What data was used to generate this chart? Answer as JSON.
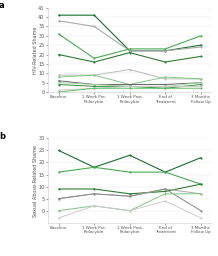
{
  "panel_a": {
    "panel_label": "a",
    "ylabel": "HIV-Related Shame",
    "xlabels": [
      "Baseline",
      "1 Week Pre-\nPsilocybin",
      "1 Week Post-\nPsilocybin",
      "End of\nTreatment",
      "3 Months\nFollow Up"
    ],
    "ylim": [
      0,
      45
    ],
    "yticks": [
      0,
      5,
      10,
      15,
      20,
      25,
      30,
      35,
      40,
      45
    ],
    "lines": [
      {
        "y": [
          41,
          41,
          22,
          22,
          25
        ],
        "color": "#1a6e2e",
        "lw": 0.8
      },
      {
        "y": [
          38,
          35,
          22,
          22,
          24
        ],
        "color": "#aaaaaa",
        "lw": 0.8
      },
      {
        "y": [
          31,
          18,
          23,
          23,
          30
        ],
        "color": "#4aaa55",
        "lw": 0.8
      },
      {
        "y": [
          20,
          16,
          21,
          16,
          19
        ],
        "color": "#2e7d32",
        "lw": 0.8
      },
      {
        "y": [
          9,
          9,
          12,
          7,
          7
        ],
        "color": "#bbbbbb",
        "lw": 0.7
      },
      {
        "y": [
          8,
          9,
          4,
          8,
          7
        ],
        "color": "#81c784",
        "lw": 0.7
      },
      {
        "y": [
          6,
          4,
          4,
          4,
          5
        ],
        "color": "#666666",
        "lw": 0.7
      },
      {
        "y": [
          5,
          4,
          3,
          3,
          5
        ],
        "color": "#a5d6a7",
        "lw": 0.7
      },
      {
        "y": [
          4,
          3,
          3,
          2,
          4
        ],
        "color": "#388e3c",
        "lw": 0.7
      },
      {
        "y": [
          1,
          2,
          3,
          3,
          3
        ],
        "color": "#cccccc",
        "lw": 0.7
      },
      {
        "y": [
          0,
          2,
          2,
          2,
          2
        ],
        "color": "#66bb6a",
        "lw": 0.7
      }
    ]
  },
  "panel_b": {
    "panel_label": "b",
    "ylabel": "Sexual Abuse-Related Shame",
    "xlabels": [
      "Baseline",
      "1 Week Pre-\nPsilocybin",
      "1 Week Post-\nPsilocybin",
      "End of\nTreatment",
      "3 Months\nFollow Up"
    ],
    "ylim": [
      -5,
      30
    ],
    "yticks": [
      0,
      5,
      10,
      15,
      20,
      25,
      30
    ],
    "lines": [
      {
        "y": [
          25,
          18,
          23,
          16,
          22
        ],
        "color": "#1a6e2e",
        "lw": 0.8
      },
      {
        "y": [
          16,
          18,
          16,
          16,
          11
        ],
        "color": "#4aaa55",
        "lw": 0.8
      },
      {
        "y": [
          9,
          9,
          7,
          8,
          11
        ],
        "color": "#2e7d32",
        "lw": 0.8
      },
      {
        "y": [
          5,
          7,
          6,
          9,
          7
        ],
        "color": "#aaaaaa",
        "lw": 0.7
      },
      {
        "y": [
          5,
          7,
          6,
          9,
          0
        ],
        "color": "#888888",
        "lw": 0.7
      },
      {
        "y": [
          0,
          2,
          0,
          7,
          7
        ],
        "color": "#81c784",
        "lw": 0.7
      },
      {
        "y": [
          -3,
          2,
          0,
          4,
          -3
        ],
        "color": "#cccccc",
        "lw": 0.7
      }
    ]
  },
  "fig_width": 2.18,
  "fig_height": 2.56,
  "dpi": 100
}
